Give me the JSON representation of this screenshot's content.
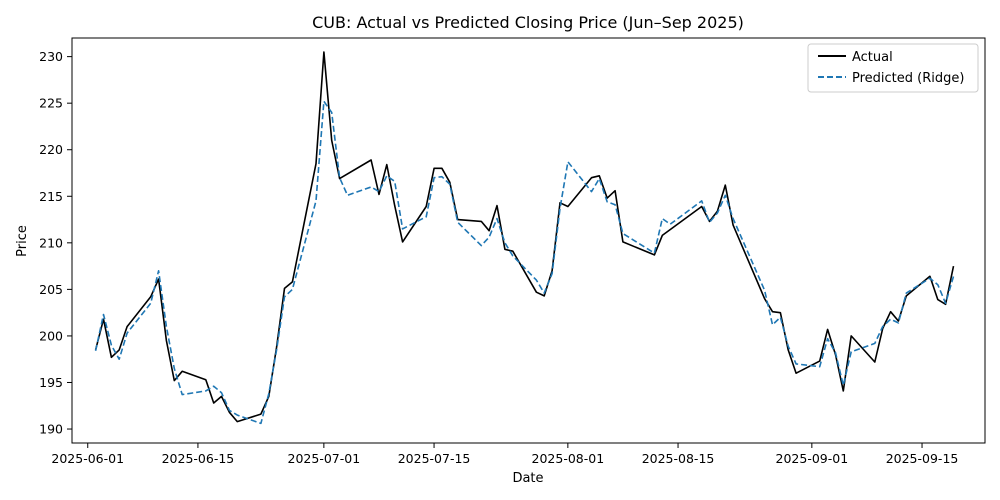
{
  "chart_data": {
    "type": "line",
    "title": "CUB: Actual vs Predicted Closing Price (Jun–Sep 2025)",
    "xlabel": "Date",
    "ylabel": "Price",
    "xlim": [
      "2025-05-30",
      "2025-09-23"
    ],
    "ylim": [
      188.5,
      232
    ],
    "x_ticks": [
      "2025-06-01",
      "2025-06-15",
      "2025-07-01",
      "2025-07-15",
      "2025-08-01",
      "2025-08-15",
      "2025-09-01",
      "2025-09-15"
    ],
    "y_ticks": [
      190,
      195,
      200,
      205,
      210,
      215,
      220,
      225,
      230
    ],
    "grid": false,
    "legend_position": "top-right",
    "series": [
      {
        "name": "Actual",
        "color": "#000000",
        "style": "solid",
        "points": [
          [
            "2025-06-02",
            198.5
          ],
          [
            "2025-06-03",
            201.8
          ],
          [
            "2025-06-04",
            197.7
          ],
          [
            "2025-06-05",
            198.5
          ],
          [
            "2025-06-06",
            201.0
          ],
          [
            "2025-06-09",
            204.2
          ],
          [
            "2025-06-10",
            206.1
          ],
          [
            "2025-06-11",
            199.5
          ],
          [
            "2025-06-12",
            195.2
          ],
          [
            "2025-06-13",
            196.2
          ],
          [
            "2025-06-16",
            195.3
          ],
          [
            "2025-06-17",
            192.8
          ],
          [
            "2025-06-18",
            193.5
          ],
          [
            "2025-06-19",
            191.8
          ],
          [
            "2025-06-20",
            190.8
          ],
          [
            "2025-06-23",
            191.6
          ],
          [
            "2025-06-24",
            193.5
          ],
          [
            "2025-06-25",
            198.8
          ],
          [
            "2025-06-26",
            205.1
          ],
          [
            "2025-06-27",
            205.8
          ],
          [
            "2025-06-30",
            218.5
          ],
          [
            "2025-07-01",
            230.5
          ],
          [
            "2025-07-02",
            221.0
          ],
          [
            "2025-07-03",
            216.9
          ],
          [
            "2025-07-07",
            218.9
          ],
          [
            "2025-07-08",
            215.2
          ],
          [
            "2025-07-09",
            218.4
          ],
          [
            "2025-07-10",
            214.0
          ],
          [
            "2025-07-11",
            210.1
          ],
          [
            "2025-07-14",
            213.9
          ],
          [
            "2025-07-15",
            218.0
          ],
          [
            "2025-07-16",
            218.0
          ],
          [
            "2025-07-17",
            216.5
          ],
          [
            "2025-07-18",
            212.5
          ],
          [
            "2025-07-21",
            212.3
          ],
          [
            "2025-07-22",
            211.3
          ],
          [
            "2025-07-23",
            214.0
          ],
          [
            "2025-07-24",
            209.3
          ],
          [
            "2025-07-25",
            209.1
          ],
          [
            "2025-07-28",
            204.7
          ],
          [
            "2025-07-29",
            204.3
          ],
          [
            "2025-07-30",
            207.0
          ],
          [
            "2025-07-31",
            214.3
          ],
          [
            "2025-08-01",
            213.9
          ],
          [
            "2025-08-04",
            217.0
          ],
          [
            "2025-08-05",
            217.2
          ],
          [
            "2025-08-06",
            214.8
          ],
          [
            "2025-08-07",
            215.6
          ],
          [
            "2025-08-08",
            210.1
          ],
          [
            "2025-08-12",
            208.7
          ],
          [
            "2025-08-13",
            210.8
          ],
          [
            "2025-08-18",
            213.9
          ],
          [
            "2025-08-19",
            212.3
          ],
          [
            "2025-08-20",
            213.4
          ],
          [
            "2025-08-21",
            216.2
          ],
          [
            "2025-08-22",
            211.9
          ],
          [
            "2025-08-26",
            204.0
          ],
          [
            "2025-08-27",
            202.6
          ],
          [
            "2025-08-28",
            202.5
          ],
          [
            "2025-08-29",
            198.5
          ],
          [
            "2025-08-30",
            196.0
          ],
          [
            "2025-09-02",
            197.3
          ],
          [
            "2025-09-03",
            200.7
          ],
          [
            "2025-09-04",
            198.0
          ],
          [
            "2025-09-05",
            194.1
          ],
          [
            "2025-09-06",
            200.0
          ],
          [
            "2025-09-09",
            197.2
          ],
          [
            "2025-09-10",
            200.8
          ],
          [
            "2025-09-11",
            202.6
          ],
          [
            "2025-09-12",
            201.6
          ],
          [
            "2025-09-13",
            204.3
          ],
          [
            "2025-09-16",
            206.4
          ],
          [
            "2025-09-17",
            203.9
          ],
          [
            "2025-09-18",
            203.4
          ],
          [
            "2025-09-19",
            207.5
          ]
        ]
      },
      {
        "name": "Predicted (Ridge)",
        "color": "#1f77b4",
        "style": "dashed",
        "points": [
          [
            "2025-06-02",
            198.4
          ],
          [
            "2025-06-03",
            202.3
          ],
          [
            "2025-06-04",
            199.0
          ],
          [
            "2025-06-05",
            197.5
          ],
          [
            "2025-06-06",
            200.3
          ],
          [
            "2025-06-09",
            203.5
          ],
          [
            "2025-06-10",
            207.0
          ],
          [
            "2025-06-11",
            201.0
          ],
          [
            "2025-06-12",
            196.5
          ],
          [
            "2025-06-13",
            193.7
          ],
          [
            "2025-06-16",
            194.1
          ],
          [
            "2025-06-17",
            194.6
          ],
          [
            "2025-06-18",
            193.9
          ],
          [
            "2025-06-19",
            192.0
          ],
          [
            "2025-06-20",
            191.5
          ],
          [
            "2025-06-23",
            190.6
          ],
          [
            "2025-06-24",
            193.8
          ],
          [
            "2025-06-25",
            198.5
          ],
          [
            "2025-06-26",
            204.2
          ],
          [
            "2025-06-27",
            205.0
          ],
          [
            "2025-06-30",
            214.5
          ],
          [
            "2025-07-01",
            225.2
          ],
          [
            "2025-07-02",
            224.0
          ],
          [
            "2025-07-03",
            217.0
          ],
          [
            "2025-07-04",
            215.1
          ],
          [
            "2025-07-07",
            216.0
          ],
          [
            "2025-07-08",
            215.5
          ],
          [
            "2025-07-09",
            217.2
          ],
          [
            "2025-07-10",
            216.6
          ],
          [
            "2025-07-11",
            211.5
          ],
          [
            "2025-07-14",
            212.8
          ],
          [
            "2025-07-15",
            217.0
          ],
          [
            "2025-07-16",
            217.1
          ],
          [
            "2025-07-17",
            216.3
          ],
          [
            "2025-07-18",
            212.2
          ],
          [
            "2025-07-21",
            209.7
          ],
          [
            "2025-07-22",
            210.6
          ],
          [
            "2025-07-23",
            212.6
          ],
          [
            "2025-07-24",
            210.0
          ],
          [
            "2025-07-25",
            208.6
          ],
          [
            "2025-07-28",
            206.0
          ],
          [
            "2025-07-29",
            204.6
          ],
          [
            "2025-07-30",
            206.7
          ],
          [
            "2025-07-31",
            213.7
          ],
          [
            "2025-08-01",
            218.7
          ],
          [
            "2025-08-04",
            215.5
          ],
          [
            "2025-08-05",
            216.9
          ],
          [
            "2025-08-06",
            214.4
          ],
          [
            "2025-08-07",
            214.1
          ],
          [
            "2025-08-08",
            211.0
          ],
          [
            "2025-08-12",
            208.9
          ],
          [
            "2025-08-13",
            212.6
          ],
          [
            "2025-08-14",
            212.0
          ],
          [
            "2025-08-18",
            214.5
          ],
          [
            "2025-08-19",
            212.2
          ],
          [
            "2025-08-20",
            213.2
          ],
          [
            "2025-08-21",
            215.1
          ],
          [
            "2025-08-22",
            212.6
          ],
          [
            "2025-08-26",
            204.9
          ],
          [
            "2025-08-27",
            201.2
          ],
          [
            "2025-08-28",
            202.0
          ],
          [
            "2025-08-29",
            198.9
          ],
          [
            "2025-08-30",
            197.0
          ],
          [
            "2025-09-02",
            196.7
          ],
          [
            "2025-09-03",
            199.7
          ],
          [
            "2025-09-04",
            198.2
          ],
          [
            "2025-09-05",
            194.7
          ],
          [
            "2025-09-06",
            198.3
          ],
          [
            "2025-09-09",
            199.2
          ],
          [
            "2025-09-10",
            201.0
          ],
          [
            "2025-09-11",
            201.8
          ],
          [
            "2025-09-12",
            201.4
          ],
          [
            "2025-09-13",
            204.6
          ],
          [
            "2025-09-16",
            206.2
          ],
          [
            "2025-09-17",
            205.5
          ],
          [
            "2025-09-18",
            203.5
          ],
          [
            "2025-09-19",
            206.4
          ]
        ]
      }
    ]
  }
}
